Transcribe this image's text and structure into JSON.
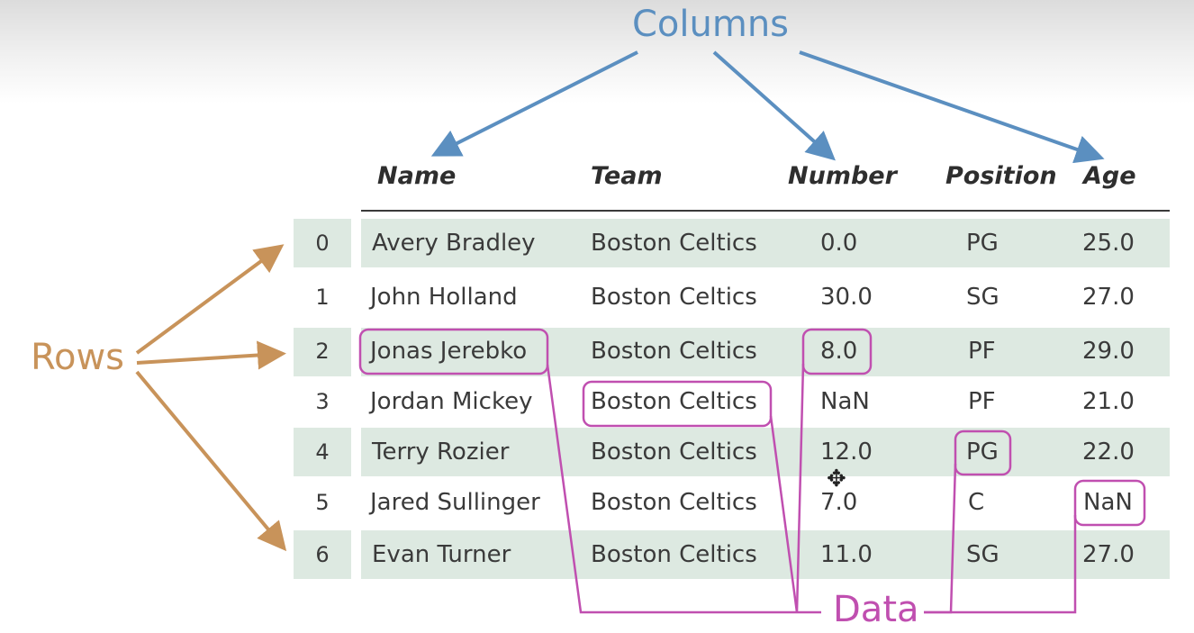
{
  "labels": {
    "columns": "Columns",
    "rows": "Rows",
    "data": "Data"
  },
  "table": {
    "headers": [
      "Name",
      "Team",
      "Number",
      "Position",
      "Age"
    ],
    "rows": [
      {
        "index": "0",
        "name": "Avery Bradley",
        "team": "Boston Celtics",
        "number": "0.0",
        "position": "PG",
        "age": "25.0"
      },
      {
        "index": "1",
        "name": "John Holland",
        "team": "Boston Celtics",
        "number": "30.0",
        "position": "SG",
        "age": "27.0"
      },
      {
        "index": "2",
        "name": "Jonas Jerebko",
        "team": "Boston Celtics",
        "number": "8.0",
        "position": "PF",
        "age": "29.0"
      },
      {
        "index": "3",
        "name": "Jordan Mickey",
        "team": "Boston Celtics",
        "number": "NaN",
        "position": "PF",
        "age": "21.0"
      },
      {
        "index": "4",
        "name": "Terry Rozier",
        "team": "Boston Celtics",
        "number": "12.0",
        "position": "PG",
        "age": "22.0"
      },
      {
        "index": "5",
        "name": "Jared Sullinger",
        "team": "Boston Celtics",
        "number": "7.0",
        "position": "C",
        "age": "NaN"
      },
      {
        "index": "6",
        "name": "Evan Turner",
        "team": "Boston Celtics",
        "number": "11.0",
        "position": "SG",
        "age": "27.0"
      }
    ]
  },
  "colors": {
    "columns": "#5b8fc0",
    "rows": "#c8935a",
    "data": "#c04fb0",
    "band": "#dde9e1"
  },
  "icons": {
    "cursor": "move-cursor-icon"
  }
}
